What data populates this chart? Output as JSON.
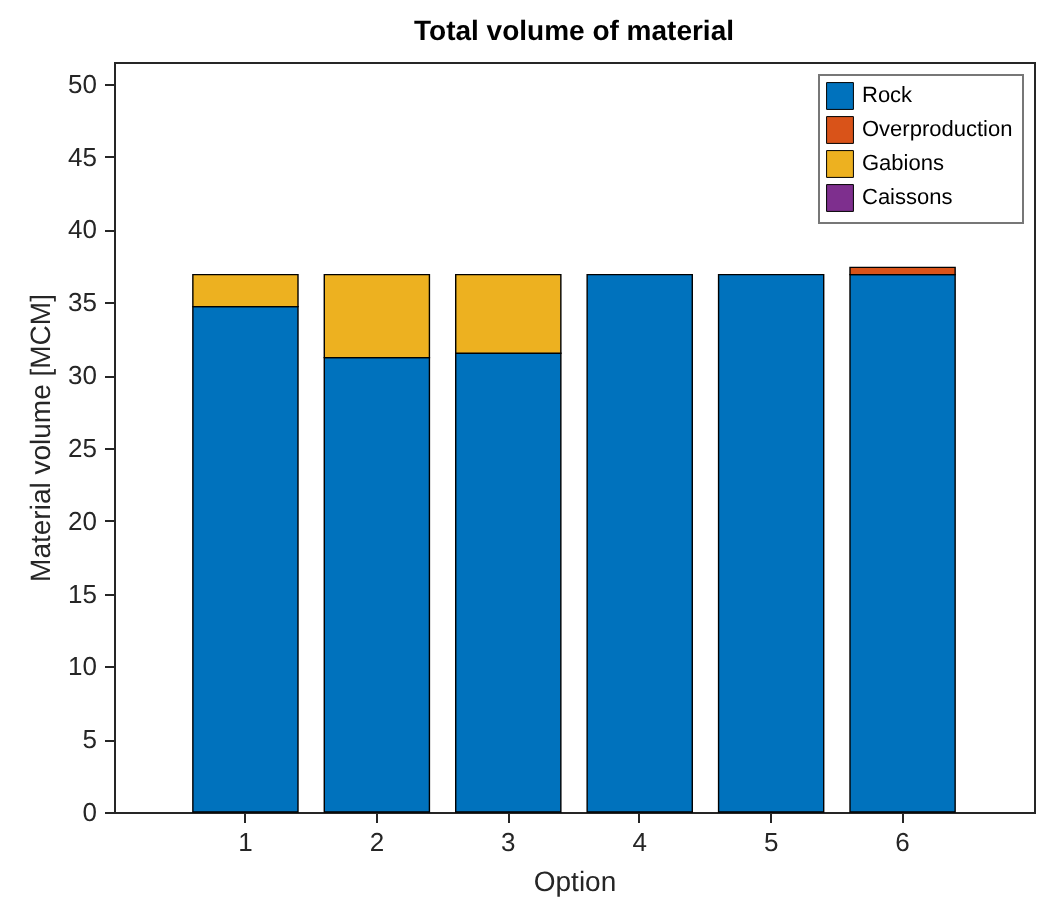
{
  "chart_data": {
    "type": "bar",
    "title": "Total volume of material",
    "xlabel": "Option",
    "ylabel": "Material volume [MCM]",
    "categories": [
      "1",
      "2",
      "3",
      "4",
      "5",
      "6"
    ],
    "stacked": true,
    "legend": "top right",
    "grid": false,
    "ylim": [
      0,
      51.5
    ],
    "yticks": [
      0,
      5,
      10,
      15,
      20,
      25,
      30,
      35,
      40,
      45,
      50
    ],
    "series": [
      {
        "name": "Rock",
        "color": "#0072bd",
        "values": [
          34.7,
          31.2,
          31.5,
          36.9,
          36.9,
          36.9
        ]
      },
      {
        "name": "Overproduction",
        "color": "#d95319",
        "values": [
          0,
          0,
          0,
          0,
          0,
          0.5
        ]
      },
      {
        "name": "Gabions",
        "color": "#edb120",
        "values": [
          2.2,
          5.7,
          5.4,
          0,
          0,
          0
        ]
      },
      {
        "name": "Caissons",
        "color": "#7e2f8e",
        "values": [
          0,
          0,
          0,
          0,
          0,
          0
        ]
      }
    ]
  }
}
